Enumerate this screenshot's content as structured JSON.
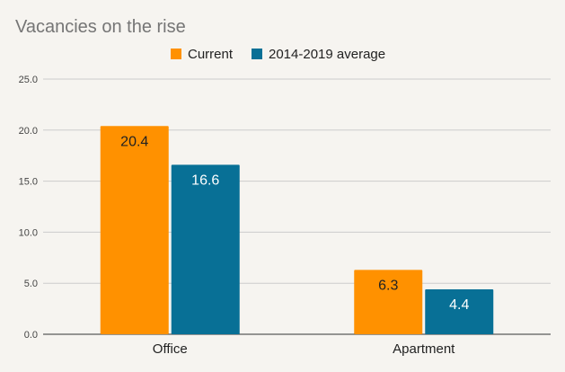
{
  "chart_data": {
    "type": "bar",
    "title": "Vacancies on the rise",
    "categories": [
      "Office",
      "Apartment"
    ],
    "series": [
      {
        "name": "Current",
        "values": [
          20.4,
          6.3
        ],
        "color": "#ff9100",
        "label_color": "#222222"
      },
      {
        "name": "2014-2019 average",
        "values": [
          16.6,
          4.4
        ],
        "color": "#087096",
        "label_color": "#ffffff"
      }
    ],
    "ylim": [
      0,
      25
    ],
    "yticks": [
      "0.0",
      "5.0",
      "10.0",
      "15.0",
      "20.0",
      "25.0"
    ],
    "xlabel": "",
    "ylabel": "",
    "grid": true,
    "legend_position": "top-center",
    "data_labels": true
  }
}
